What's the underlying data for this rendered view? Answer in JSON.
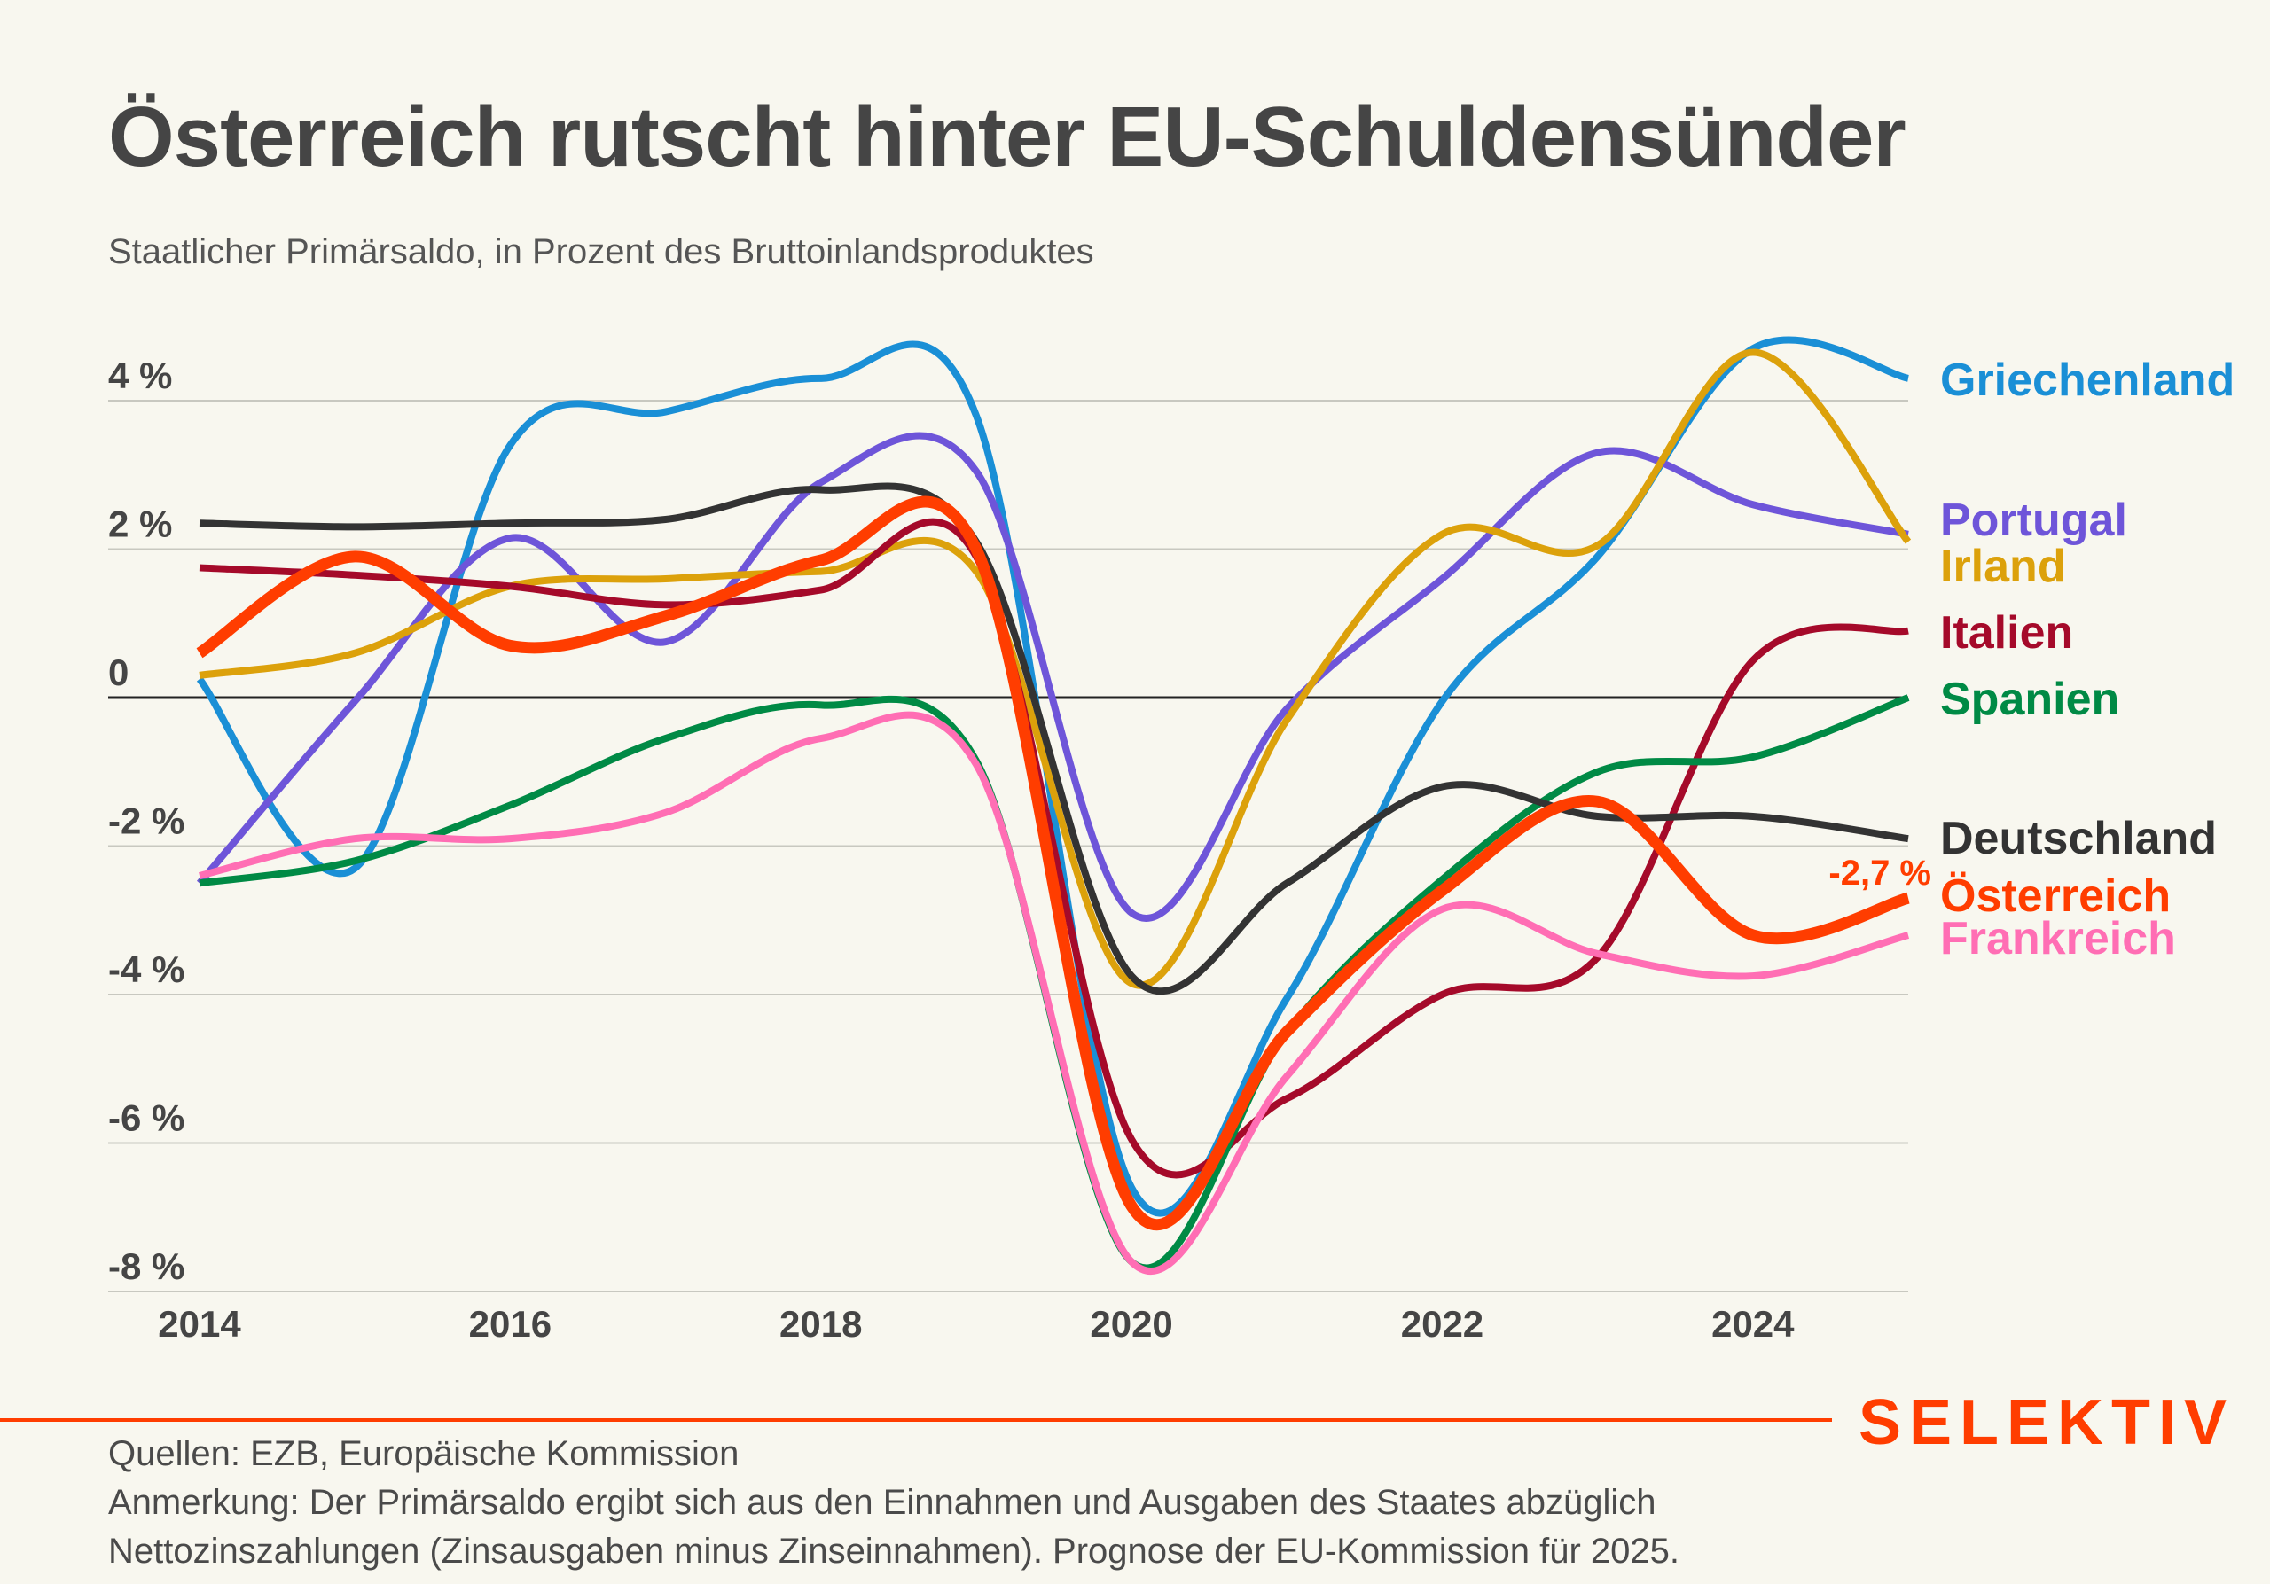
{
  "title": "Österreich rutscht hinter EU-Schuldensünder",
  "subtitle": "Staatlicher Primärsaldo, in Prozent des Bruttoinlandsproduktes",
  "brand": "SELEKTIV",
  "footer": {
    "sources": "Quellen: EZB, Europäische Kommission",
    "note_line1": "Anmerkung: Der Primärsaldo ergibt sich aus den Einnahmen und Ausgaben des Staates abzüglich",
    "note_line2": "Nettozinszahlungen (Zinsausgaben minus Zinseinnahmen). Prognose der EU-Kommission für 2025."
  },
  "chart_data": {
    "type": "line",
    "title": "Österreich rutscht hinter EU-Schuldensünder",
    "subtitle": "Staatlicher Primärsaldo, in Prozent des Bruttoinlandsproduktes",
    "xlabel": "",
    "ylabel": "",
    "x": [
      2014,
      2015,
      2016,
      2017,
      2018,
      2019,
      2020,
      2021,
      2022,
      2023,
      2024,
      2025
    ],
    "xlim": [
      2014,
      2025
    ],
    "ylim": [
      -8,
      4
    ],
    "x_ticks": [
      {
        "value": 2014,
        "label": "2014"
      },
      {
        "value": 2016,
        "label": "2016"
      },
      {
        "value": 2018,
        "label": "2018"
      },
      {
        "value": 2020,
        "label": "2020"
      },
      {
        "value": 2022,
        "label": "2022"
      },
      {
        "value": 2024,
        "label": "2024"
      }
    ],
    "y_ticks": [
      {
        "value": 4,
        "label": "4 %"
      },
      {
        "value": 2,
        "label": "2 %"
      },
      {
        "value": 0,
        "label": "0"
      },
      {
        "value": -2,
        "label": "-2 %"
      },
      {
        "value": -4,
        "label": "-4 %"
      },
      {
        "value": -6,
        "label": "-6 %"
      },
      {
        "value": -8,
        "label": "-8 %"
      }
    ],
    "grid": true,
    "legend": "direct labels right",
    "annotation": {
      "text": "-2,7 %",
      "series": "Österreich",
      "x": 2025,
      "y": -2.7,
      "color": "#ff3d00"
    },
    "series": [
      {
        "name": "Griechenland",
        "color": "#1a8fd6",
        "values": [
          0.25,
          -2.3,
          3.4,
          3.85,
          4.3,
          3.8,
          -6.6,
          -4.05,
          -0.05,
          1.9,
          4.7,
          4.3
        ]
      },
      {
        "name": "Portugal",
        "color": "#6e55d9",
        "values": [
          -2.5,
          -0.05,
          2.15,
          0.75,
          2.9,
          3.05,
          -2.9,
          -0.15,
          1.6,
          3.3,
          2.6,
          2.2
        ]
      },
      {
        "name": "Irland",
        "color": "#dca10b",
        "values": [
          0.3,
          0.6,
          1.5,
          1.6,
          1.7,
          1.7,
          -3.85,
          -0.3,
          2.2,
          2.05,
          4.65,
          2.1
        ]
      },
      {
        "name": "Italien",
        "color": "#a50a2a",
        "values": [
          1.75,
          1.65,
          1.5,
          1.25,
          1.45,
          1.9,
          -5.95,
          -5.4,
          -4.0,
          -3.5,
          0.5,
          0.9
        ]
      },
      {
        "name": "Spanien",
        "color": "#008a45",
        "values": [
          -2.5,
          -2.2,
          -1.45,
          -0.55,
          -0.1,
          -0.85,
          -7.6,
          -4.5,
          -2.45,
          -1.0,
          -0.8,
          0.0
        ]
      },
      {
        "name": "Deutschland",
        "color": "#333333",
        "values": [
          2.35,
          2.3,
          2.35,
          2.4,
          2.8,
          2.1,
          -3.75,
          -2.5,
          -1.2,
          -1.6,
          -1.6,
          -1.9
        ]
      },
      {
        "name": "Frankreich",
        "color": "#ff6eb4",
        "values": [
          -2.4,
          -1.9,
          -1.9,
          -1.55,
          -0.55,
          -0.9,
          -7.6,
          -5.1,
          -2.85,
          -3.45,
          -3.75,
          -3.2
        ]
      },
      {
        "name": "Österreich",
        "color": "#ff3d00",
        "values": [
          0.6,
          1.9,
          0.7,
          1.1,
          1.85,
          2.0,
          -6.85,
          -4.5,
          -2.6,
          -1.4,
          -3.2,
          -2.7
        ],
        "highlight": true
      }
    ]
  }
}
